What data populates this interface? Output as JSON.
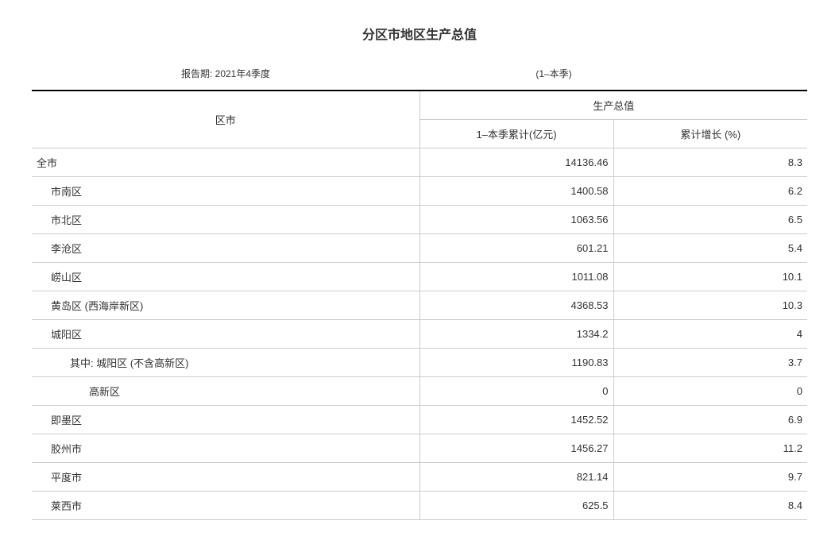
{
  "title": "分区市地区生产总值",
  "report_period_label": "报告期:",
  "report_period_value": "2021年4季度",
  "report_period_note": "(1–本季)",
  "headers": {
    "region": "区市",
    "group": "生产总值",
    "cumulative": "1–本季累计(亿元)",
    "growth": "累计增长 (%)"
  },
  "rows": [
    {
      "region": "全市",
      "indent": 0,
      "value": "14136.46",
      "growth": "8.3"
    },
    {
      "region": "市南区",
      "indent": 1,
      "value": "1400.58",
      "growth": "6.2"
    },
    {
      "region": "市北区",
      "indent": 1,
      "value": "1063.56",
      "growth": "6.5"
    },
    {
      "region": "李沧区",
      "indent": 1,
      "value": "601.21",
      "growth": "5.4"
    },
    {
      "region": "崂山区",
      "indent": 1,
      "value": "1011.08",
      "growth": "10.1"
    },
    {
      "region": "黄岛区 (西海岸新区)",
      "indent": 1,
      "value": "4368.53",
      "growth": "10.3"
    },
    {
      "region": "城阳区",
      "indent": 1,
      "value": "1334.2",
      "growth": "4"
    },
    {
      "region": "其中: 城阳区 (不含高新区)",
      "indent": 2,
      "value": "1190.83",
      "growth": "3.7"
    },
    {
      "region": "高新区",
      "indent": 3,
      "value": "0",
      "growth": "0"
    },
    {
      "region": "即墨区",
      "indent": 1,
      "value": "1452.52",
      "growth": "6.9"
    },
    {
      "region": "胶州市",
      "indent": 1,
      "value": "1456.27",
      "growth": "11.2"
    },
    {
      "region": "平度市",
      "indent": 1,
      "value": "821.14",
      "growth": "9.7"
    },
    {
      "region": "莱西市",
      "indent": 1,
      "value": "625.5",
      "growth": "8.4"
    }
  ],
  "style": {
    "background_color": "#ffffff",
    "text_color": "#333333",
    "border_top_color": "#000000",
    "border_color": "#cccccc",
    "title_fontsize": 16,
    "body_fontsize": 13
  }
}
